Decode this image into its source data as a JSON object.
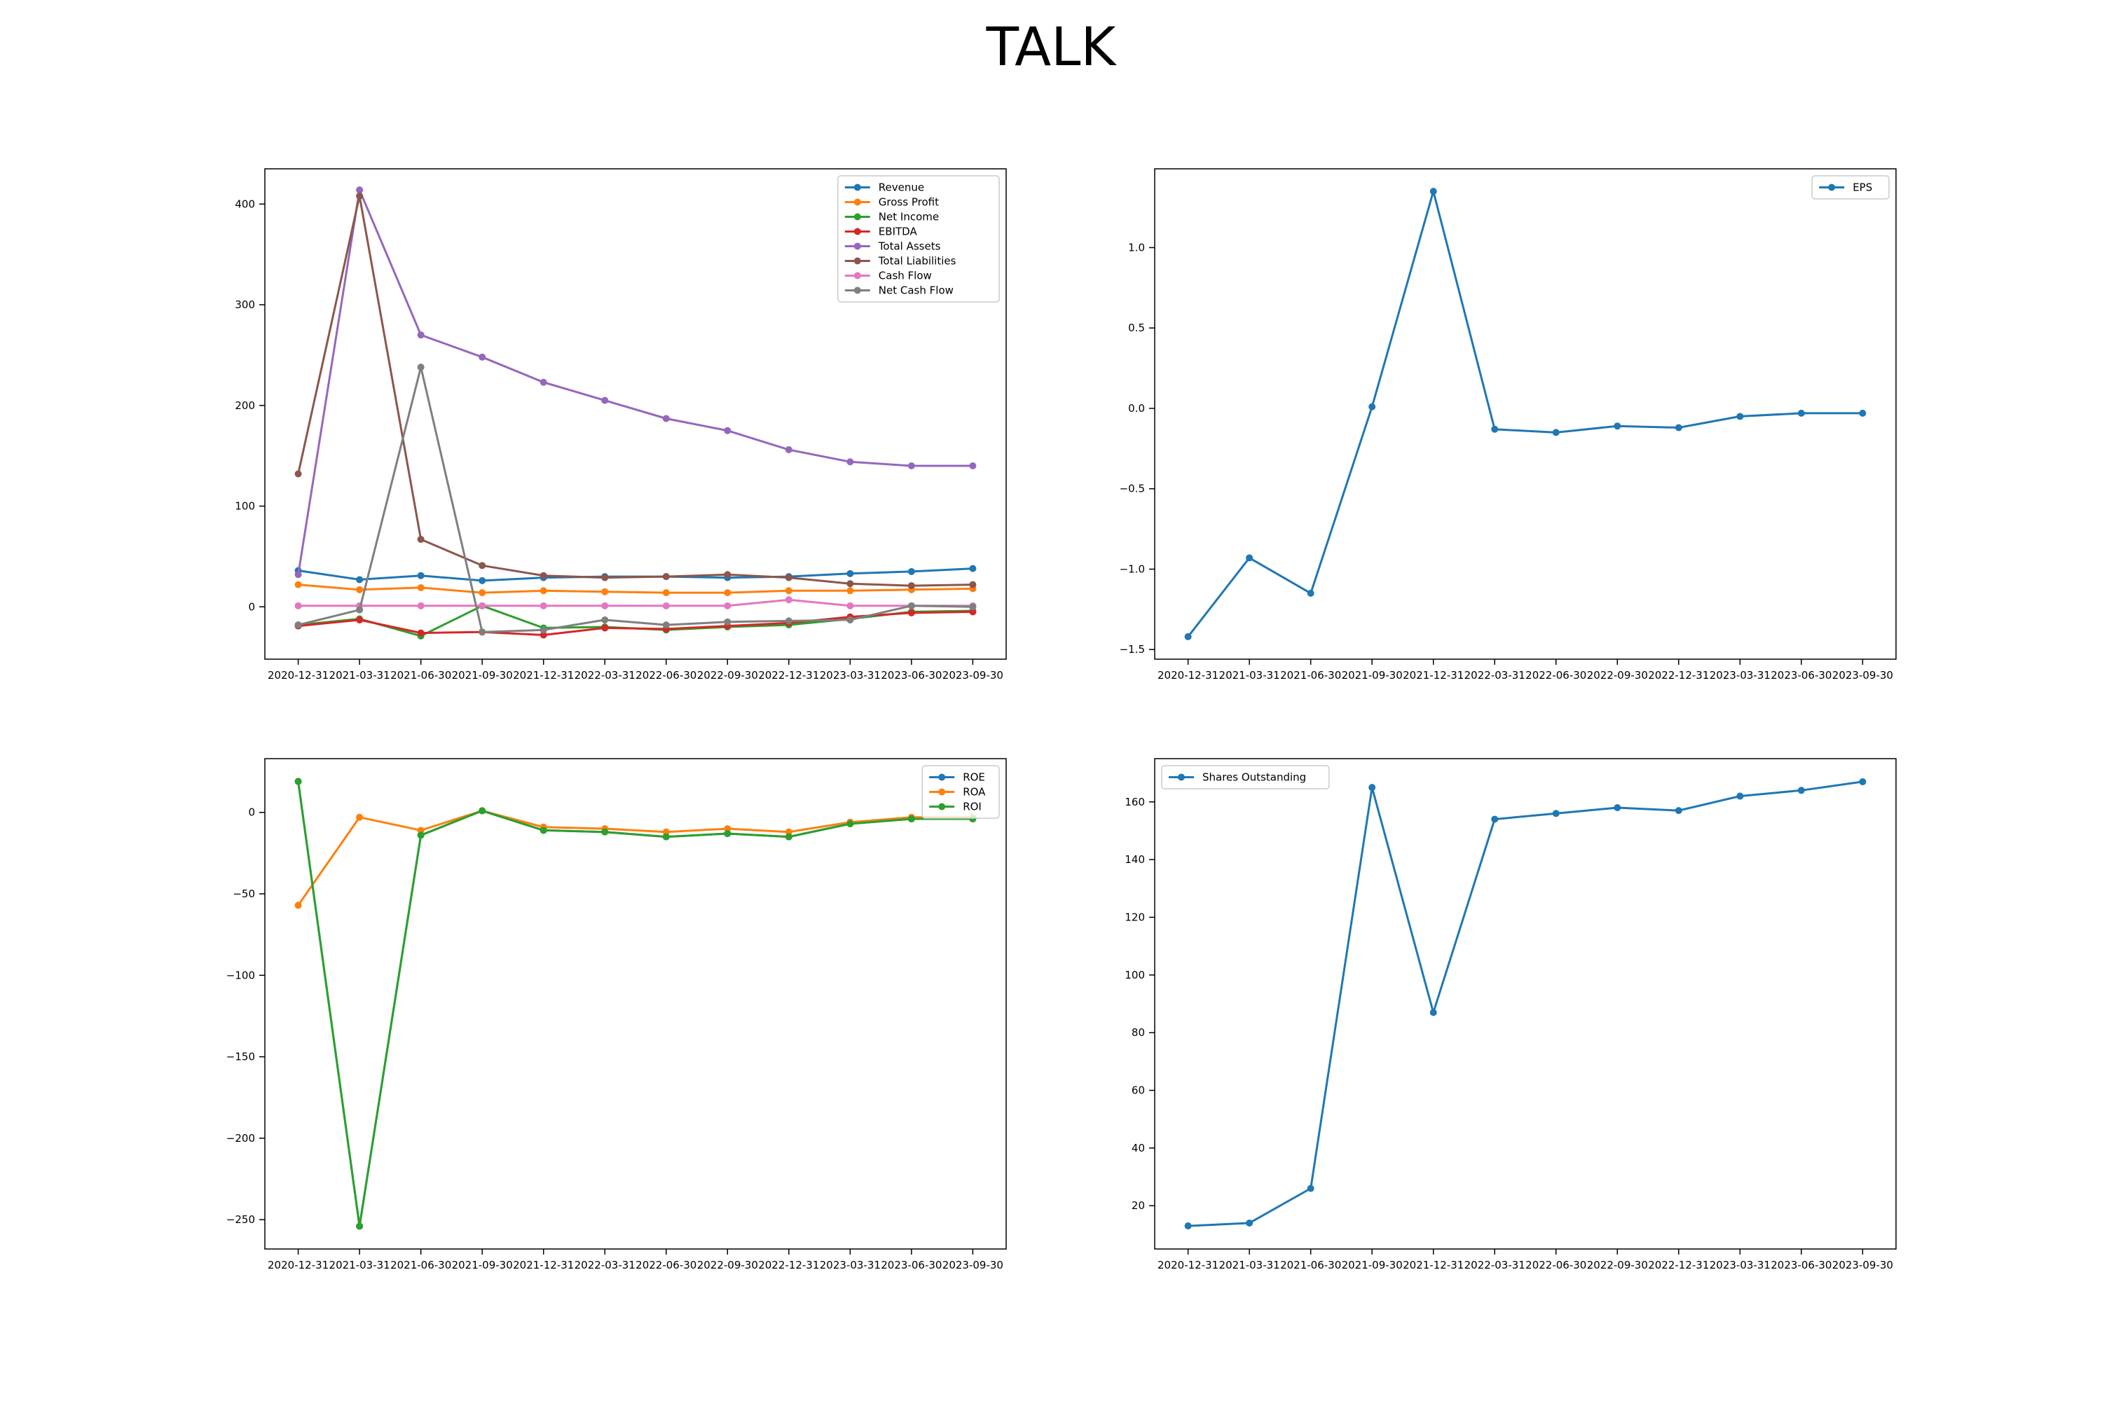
{
  "title": "TALK",
  "chart_data": [
    {
      "type": "line",
      "legend_position": "upper-right",
      "x": [
        "2020-12-31",
        "2021-03-31",
        "2021-06-30",
        "2021-09-30",
        "2021-12-31",
        "2022-03-31",
        "2022-06-30",
        "2022-09-30",
        "2022-12-31",
        "2023-03-31",
        "2023-06-30",
        "2023-09-30"
      ],
      "ylim": [
        -52,
        435
      ],
      "yticks": [
        0,
        100,
        200,
        300,
        400
      ],
      "series": [
        {
          "name": "Revenue",
          "color": "#1f77b4",
          "values": [
            36,
            27,
            31,
            26,
            29,
            30,
            30,
            29,
            30,
            33,
            35,
            38
          ]
        },
        {
          "name": "Gross Profit",
          "color": "#ff7f0e",
          "values": [
            22,
            17,
            19,
            14,
            16,
            15,
            14,
            14,
            16,
            16,
            17,
            18
          ]
        },
        {
          "name": "Net Income",
          "color": "#2ca02c",
          "values": [
            -18,
            -12,
            -29,
            1,
            -21,
            -20,
            -23,
            -20,
            -18,
            -12,
            -5,
            -4
          ]
        },
        {
          "name": "EBITDA",
          "color": "#d62728",
          "values": [
            -19,
            -13,
            -26,
            -25,
            -28,
            -21,
            -22,
            -19,
            -16,
            -10,
            -6,
            -5
          ]
        },
        {
          "name": "Total Assets",
          "color": "#9467bd",
          "values": [
            32,
            414,
            270,
            248,
            223,
            205,
            187,
            175,
            156,
            144,
            140,
            140
          ]
        },
        {
          "name": "Total Liabilities",
          "color": "#8c564b",
          "values": [
            132,
            408,
            67,
            41,
            31,
            29,
            30,
            32,
            29,
            23,
            21,
            22
          ]
        },
        {
          "name": "Cash Flow",
          "color": "#e377c2",
          "values": [
            1,
            1,
            1,
            1,
            1,
            1,
            1,
            1,
            7,
            1,
            1,
            1
          ]
        },
        {
          "name": "Net Cash Flow",
          "color": "#7f7f7f",
          "values": [
            -18,
            -3,
            238,
            -25,
            -23,
            -13,
            -18,
            -15,
            -14,
            -13,
            1,
            0
          ]
        }
      ]
    },
    {
      "type": "line",
      "legend_position": "upper-right",
      "x": [
        "2020-12-31",
        "2021-03-31",
        "2021-06-30",
        "2021-09-30",
        "2021-12-31",
        "2022-03-31",
        "2022-06-30",
        "2022-09-30",
        "2022-12-31",
        "2023-03-31",
        "2023-06-30",
        "2023-09-30"
      ],
      "ylim": [
        -1.56,
        1.49
      ],
      "yticks": [
        -1.5,
        -1.0,
        -0.5,
        0.0,
        0.5,
        1.0
      ],
      "series": [
        {
          "name": "EPS",
          "color": "#1f77b4",
          "values": [
            -1.42,
            -0.93,
            -1.15,
            0.01,
            1.35,
            -0.13,
            -0.15,
            -0.11,
            -0.12,
            -0.05,
            -0.03,
            -0.03
          ]
        }
      ]
    },
    {
      "type": "line",
      "legend_position": "upper-right",
      "x": [
        "2020-12-31",
        "2021-03-31",
        "2021-06-30",
        "2021-09-30",
        "2021-12-31",
        "2022-03-31",
        "2022-06-30",
        "2022-09-30",
        "2022-12-31",
        "2023-03-31",
        "2023-06-30",
        "2023-09-30"
      ],
      "ylim": [
        -268,
        33
      ],
      "yticks": [
        -250,
        -200,
        -150,
        -100,
        -50,
        0
      ],
      "series": [
        {
          "name": "ROE",
          "color": "#1f77b4",
          "values": [
            19,
            -254,
            -14,
            1,
            -11,
            -12,
            -15,
            -13,
            -15,
            -7,
            -4,
            -4
          ]
        },
        {
          "name": "ROA",
          "color": "#ff7f0e",
          "values": [
            -57,
            -3,
            -11,
            1,
            -9,
            -10,
            -12,
            -10,
            -12,
            -6,
            -3,
            -3
          ]
        },
        {
          "name": "ROI",
          "color": "#2ca02c",
          "values": [
            19,
            -254,
            -14,
            1,
            -11,
            -12,
            -15,
            -13,
            -15,
            -7,
            -4,
            -4
          ]
        }
      ]
    },
    {
      "type": "line",
      "legend_position": "upper-left",
      "x": [
        "2020-12-31",
        "2021-03-31",
        "2021-06-30",
        "2021-09-30",
        "2021-12-31",
        "2022-03-31",
        "2022-06-30",
        "2022-09-30",
        "2022-12-31",
        "2023-03-31",
        "2023-06-30",
        "2023-09-30"
      ],
      "ylim": [
        5,
        175
      ],
      "yticks": [
        20,
        40,
        60,
        80,
        100,
        120,
        140,
        160
      ],
      "series": [
        {
          "name": "Shares Outstanding",
          "color": "#1f77b4",
          "values": [
            13,
            14,
            26,
            165,
            87,
            154,
            156,
            158,
            157,
            162,
            164,
            167
          ]
        }
      ]
    }
  ]
}
